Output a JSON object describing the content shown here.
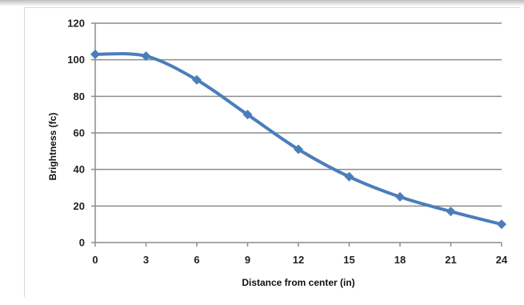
{
  "chart_data": {
    "type": "line",
    "title": "",
    "xlabel": "Distance from center (in)",
    "ylabel": "Brightness (fc)",
    "x": [
      0,
      3,
      6,
      9,
      12,
      15,
      18,
      21,
      24
    ],
    "series": [
      {
        "values": [
          103,
          102,
          89,
          70,
          51,
          36,
          25,
          17,
          10
        ]
      }
    ],
    "xlim": [
      0,
      24
    ],
    "ylim": [
      0,
      120
    ],
    "x_ticks": [
      "0",
      "3",
      "6",
      "9",
      "12",
      "15",
      "18",
      "21",
      "24"
    ],
    "y_ticks": [
      "0",
      "20",
      "40",
      "60",
      "80",
      "100",
      "120"
    ],
    "grid": "horizontal",
    "legend": "none",
    "line_color": "#4a7ebb",
    "marker": "diamond",
    "smooth": true
  }
}
